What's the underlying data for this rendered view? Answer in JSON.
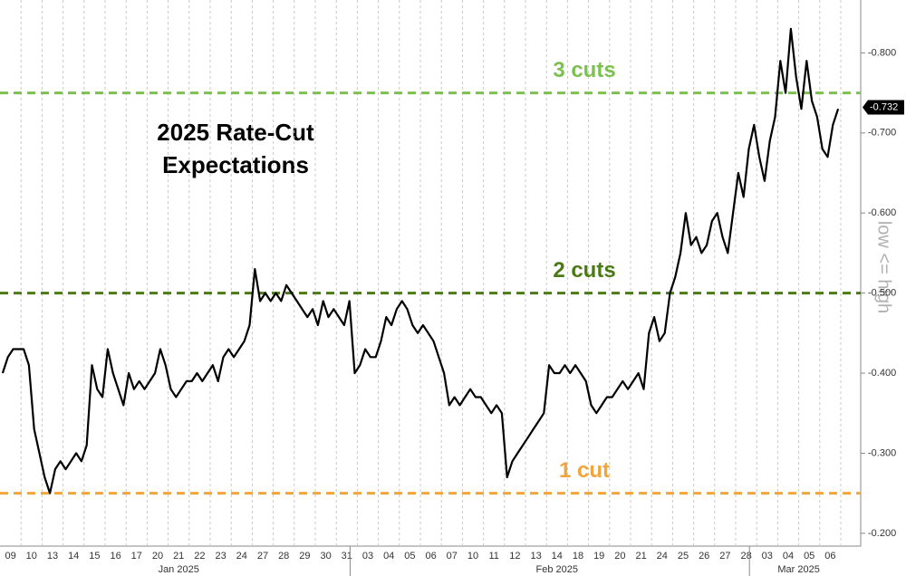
{
  "chart_data": {
    "type": "line",
    "title": [
      "2025 Rate-Cut",
      "Expectations"
    ],
    "y_axis_label": "low <= high",
    "x_groups": [
      {
        "label": "Jan 2025",
        "categories": [
          "09",
          "10",
          "13",
          "14",
          "15",
          "16",
          "17",
          "20",
          "21",
          "22",
          "23",
          "24",
          "27",
          "28",
          "29",
          "30",
          "31"
        ]
      },
      {
        "label": "Feb 2025",
        "categories": [
          "03",
          "04",
          "05",
          "06",
          "07",
          "10",
          "11",
          "12",
          "13",
          "14",
          "18",
          "19",
          "20",
          "21",
          "24",
          "25",
          "26",
          "27",
          "28"
        ]
      },
      {
        "label": "Mar 2025",
        "categories": [
          "03",
          "04",
          "05",
          "06"
        ]
      }
    ],
    "series": [
      {
        "color": "#000000",
        "last_value": -0.732,
        "values": [
          [
            -0.4,
            -0.42,
            -0.43,
            -0.43
          ],
          [
            -0.43,
            -0.41,
            -0.33,
            -0.3
          ],
          [
            -0.27,
            -0.25,
            -0.28,
            -0.29
          ],
          [
            -0.28,
            -0.29,
            -0.3,
            -0.29
          ],
          [
            -0.31,
            -0.41,
            -0.38,
            -0.37
          ],
          [
            -0.43,
            -0.4,
            -0.38,
            -0.36
          ],
          [
            -0.4,
            -0.38,
            -0.39,
            -0.38
          ],
          [
            -0.39,
            -0.4,
            -0.43,
            -0.41
          ],
          [
            -0.38,
            -0.37,
            -0.38,
            -0.39
          ],
          [
            -0.39,
            -0.4,
            -0.39,
            -0.4
          ],
          [
            -0.41,
            -0.39,
            -0.42,
            -0.43
          ],
          [
            -0.42,
            -0.43,
            -0.44,
            -0.46
          ],
          [
            -0.53,
            -0.49,
            -0.5,
            -0.49
          ],
          [
            -0.5,
            -0.49,
            -0.51,
            -0.5
          ],
          [
            -0.49,
            -0.48,
            -0.47,
            -0.48
          ],
          [
            -0.46,
            -0.49,
            -0.47,
            -0.48
          ],
          [
            -0.47,
            -0.46,
            -0.49,
            -0.4
          ],
          [
            -0.41,
            -0.43,
            -0.42,
            -0.42
          ],
          [
            -0.44,
            -0.47,
            -0.46,
            -0.48
          ],
          [
            -0.49,
            -0.48,
            -0.46,
            -0.45
          ],
          [
            -0.46,
            -0.45,
            -0.44,
            -0.42
          ],
          [
            -0.4,
            -0.36,
            -0.37,
            -0.36
          ],
          [
            -0.37,
            -0.38,
            -0.37,
            -0.37
          ],
          [
            -0.36,
            -0.35,
            -0.36,
            -0.35
          ],
          [
            -0.27,
            -0.29,
            -0.3,
            -0.31
          ],
          [
            -0.32,
            -0.33,
            -0.34,
            -0.35
          ],
          [
            -0.41,
            -0.4,
            -0.4,
            -0.41
          ],
          [
            -0.4,
            -0.41,
            -0.4,
            -0.39
          ],
          [
            -0.36,
            -0.35,
            -0.36,
            -0.37
          ],
          [
            -0.37,
            -0.38,
            -0.39,
            -0.38
          ],
          [
            -0.39,
            -0.4,
            -0.38,
            -0.45
          ],
          [
            -0.47,
            -0.44,
            -0.45,
            -0.5
          ],
          [
            -0.52,
            -0.55,
            -0.6,
            -0.56
          ],
          [
            -0.57,
            -0.55,
            -0.56,
            -0.59
          ],
          [
            -0.6,
            -0.57,
            -0.55,
            -0.6
          ],
          [
            -0.65,
            -0.62,
            -0.68,
            -0.71
          ],
          [
            -0.67,
            -0.64,
            -0.69,
            -0.72
          ],
          [
            -0.79,
            -0.75,
            -0.83,
            -0.77
          ],
          [
            -0.73,
            -0.79,
            -0.74,
            -0.72
          ],
          [
            -0.68,
            -0.67,
            -0.71,
            -0.73
          ]
        ]
      }
    ],
    "reference_lines": [
      {
        "label": "3 cuts",
        "value": -0.75,
        "color": "#7cc150"
      },
      {
        "label": "2 cuts",
        "value": -0.5,
        "color": "#4b7a14"
      },
      {
        "label": "1 cut",
        "value": -0.25,
        "color": "#f2a53a"
      }
    ],
    "ylim": [
      -0.184,
      -0.866
    ],
    "yticks": [
      {
        "value": -0.2,
        "label": "-0.200"
      },
      {
        "value": -0.3,
        "label": "-0.300"
      },
      {
        "value": -0.4,
        "label": "-0.400"
      },
      {
        "value": -0.5,
        "label": "-0.500"
      },
      {
        "value": -0.6,
        "label": "-0.600"
      },
      {
        "value": -0.7,
        "label": "-0.700"
      },
      {
        "value": -0.8,
        "label": "-0.800"
      }
    ],
    "grid": true
  }
}
